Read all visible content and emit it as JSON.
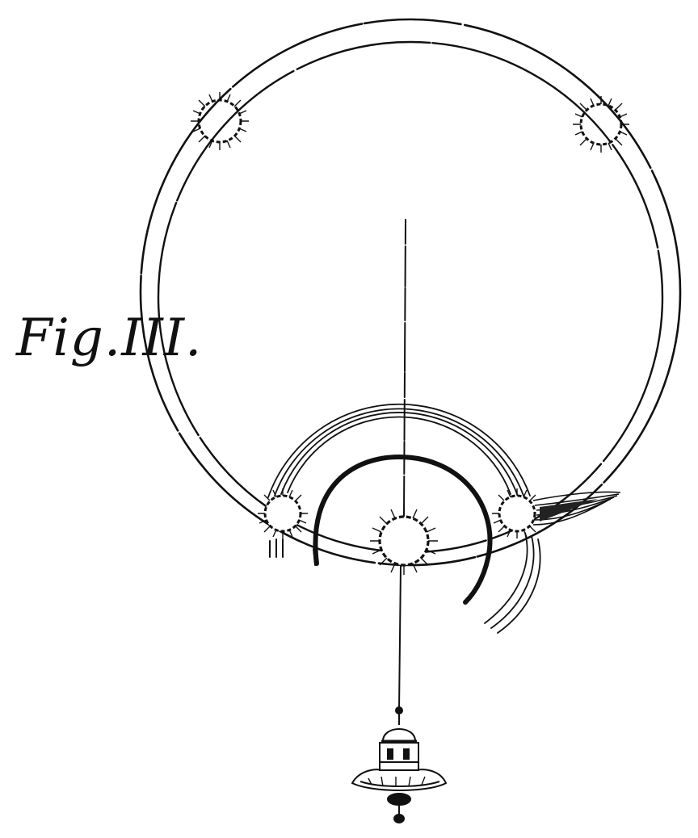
{
  "figure": {
    "caption": "Fig.III.",
    "ink_color": "#111111",
    "background_color": "#ffffff",
    "elements": [
      {
        "name": "outer-halo-ring",
        "kind": "double-ring"
      },
      {
        "name": "parhelion-upper-left",
        "kind": "sun-spot"
      },
      {
        "name": "parhelion-upper-right",
        "kind": "sun-spot"
      },
      {
        "name": "parhelion-lower-left",
        "kind": "sun-spot"
      },
      {
        "name": "parhelion-lower-right",
        "kind": "sun-spot"
      },
      {
        "name": "sun-bottom-center",
        "kind": "sun-spot"
      },
      {
        "name": "inner-arc-bold",
        "kind": "arc"
      },
      {
        "name": "inner-arc-thin-set",
        "kind": "arc"
      },
      {
        "name": "vertical-axis",
        "kind": "line"
      },
      {
        "name": "tower-cupola",
        "kind": "building"
      },
      {
        "name": "ray-tail-right",
        "kind": "streak"
      }
    ]
  }
}
